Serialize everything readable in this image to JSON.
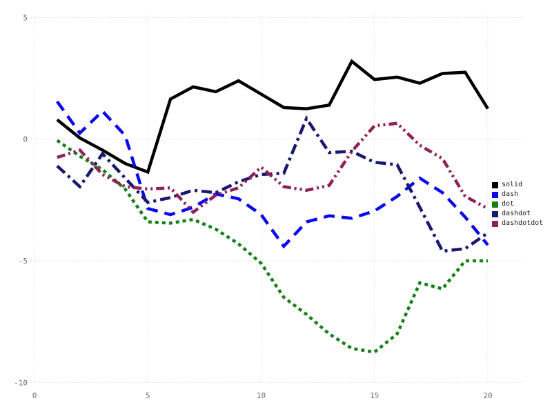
{
  "chart_data": {
    "type": "line",
    "title": "",
    "xlabel": "",
    "ylabel": "",
    "x_ticks": [
      0,
      5,
      10,
      15,
      20
    ],
    "y_ticks": [
      5,
      0,
      -5,
      -10
    ],
    "xlim": [
      0,
      20
    ],
    "ylim": [
      -10,
      5
    ],
    "grid": "dotted",
    "grid_color": "#d9d9d9",
    "tick_label_color": "#6e6e6e",
    "legend_position": "right-outside",
    "x": [
      1,
      2,
      3,
      4,
      5,
      6,
      7,
      8,
      9,
      10,
      11,
      12,
      13,
      14,
      15,
      16,
      17,
      18,
      19,
      20
    ],
    "series": [
      {
        "name": "solid",
        "color": "#000000",
        "line_style": "solid",
        "values": [
          0.8,
          0.05,
          -0.45,
          -1.0,
          -1.35,
          1.65,
          2.15,
          1.95,
          2.4,
          1.85,
          1.3,
          1.25,
          1.4,
          3.2,
          2.45,
          2.55,
          2.3,
          2.7,
          2.75,
          1.25
        ]
      },
      {
        "name": "dash",
        "color": "#0a0af0",
        "line_style": "dash",
        "values": [
          1.55,
          0.25,
          1.15,
          0.15,
          -2.85,
          -3.1,
          -2.8,
          -2.25,
          -2.45,
          -3.1,
          -4.4,
          -3.4,
          -3.15,
          -3.25,
          -2.95,
          -2.35,
          -1.6,
          -2.2,
          -3.2,
          -4.35
        ]
      },
      {
        "name": "dot",
        "color": "#168016",
        "line_style": "dot",
        "values": [
          -0.05,
          -0.7,
          -1.25,
          -2.05,
          -3.4,
          -3.45,
          -3.3,
          -3.7,
          -4.3,
          -5.1,
          -6.5,
          -7.2,
          -8.0,
          -8.6,
          -8.75,
          -8.0,
          -5.9,
          -6.15,
          -5.0,
          -5.0
        ]
      },
      {
        "name": "dashdot",
        "color": "#18186e",
        "line_style": "dashdot",
        "values": [
          -1.1,
          -1.95,
          -0.6,
          -1.6,
          -2.6,
          -2.4,
          -2.1,
          -2.2,
          -1.75,
          -1.45,
          -1.4,
          0.85,
          -0.55,
          -0.5,
          -0.95,
          -1.05,
          -2.8,
          -4.6,
          -4.5,
          -3.85
        ]
      },
      {
        "name": "dashdotdot",
        "color": "#8e2155",
        "line_style": "dashdotdot",
        "values": [
          -0.75,
          -0.45,
          -1.45,
          -1.95,
          -2.05,
          -2.0,
          -3.0,
          -2.3,
          -2.0,
          -1.15,
          -1.95,
          -2.1,
          -1.9,
          -0.5,
          0.55,
          0.65,
          -0.25,
          -0.8,
          -2.35,
          -2.85
        ]
      }
    ]
  }
}
